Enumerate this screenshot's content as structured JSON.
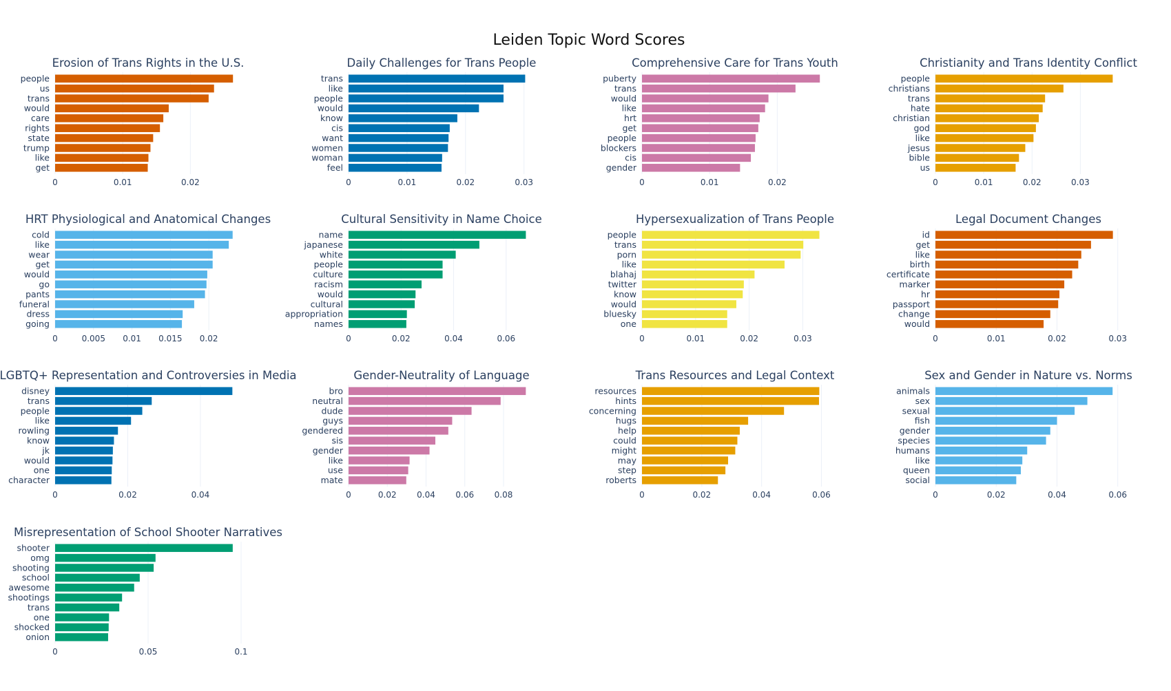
{
  "title": "Leiden Topic Word Scores",
  "chart_data": [
    {
      "type": "bar",
      "orientation": "horizontal",
      "title": "Erosion of Trans Rights in the U.S.",
      "color": "#D55E00",
      "categories": [
        "people",
        "us",
        "trans",
        "would",
        "care",
        "rights",
        "state",
        "trump",
        "like",
        "get"
      ],
      "values": [
        0.0263,
        0.0235,
        0.0227,
        0.0168,
        0.016,
        0.0155,
        0.0145,
        0.0141,
        0.0138,
        0.0137
      ],
      "xlim": [
        0,
        0.0275
      ],
      "xticks": [
        0,
        0.01,
        0.02
      ],
      "xticklabels": [
        "0",
        "0.01",
        "0.02"
      ]
    },
    {
      "type": "bar",
      "orientation": "horizontal",
      "title": "Daily Challenges for Trans People",
      "color": "#0072B2",
      "categories": [
        "trans",
        "like",
        "people",
        "would",
        "know",
        "cis",
        "want",
        "women",
        "woman",
        "feel"
      ],
      "values": [
        0.0302,
        0.0265,
        0.0265,
        0.0223,
        0.0186,
        0.0173,
        0.0171,
        0.017,
        0.016,
        0.0159
      ],
      "xlim": [
        0,
        0.0318
      ],
      "xticks": [
        0,
        0.01,
        0.02,
        0.03
      ],
      "xticklabels": [
        "0",
        "0.01",
        "0.02",
        "0.03"
      ]
    },
    {
      "type": "bar",
      "orientation": "horizontal",
      "title": "Comprehensive Care for Trans Youth",
      "color": "#CC79A7",
      "categories": [
        "puberty",
        "trans",
        "would",
        "like",
        "hrt",
        "get",
        "people",
        "blockers",
        "cis",
        "gender"
      ],
      "values": [
        0.0263,
        0.0227,
        0.0187,
        0.0182,
        0.0174,
        0.0172,
        0.0168,
        0.0167,
        0.0161,
        0.0145
      ],
      "xlim": [
        0,
        0.0275
      ],
      "xticks": [
        0,
        0.01,
        0.02
      ],
      "xticklabels": [
        "0",
        "0.01",
        "0.02"
      ]
    },
    {
      "type": "bar",
      "orientation": "horizontal",
      "title": "Christianity and Trans Identity Conflict",
      "color": "#E69F00",
      "categories": [
        "people",
        "christians",
        "trans",
        "hate",
        "christian",
        "god",
        "like",
        "jesus",
        "bible",
        "us"
      ],
      "values": [
        0.0367,
        0.0265,
        0.0227,
        0.0222,
        0.0214,
        0.0208,
        0.0203,
        0.0186,
        0.0173,
        0.0166
      ],
      "xlim": [
        0,
        0.0385
      ],
      "xticks": [
        0,
        0.01,
        0.02,
        0.03
      ],
      "xticklabels": [
        "0",
        "0.01",
        "0.02",
        "0.03"
      ]
    },
    {
      "type": "bar",
      "orientation": "horizontal",
      "title": "HRT Physiological and Anatomical Changes",
      "color": "#56B4E9",
      "categories": [
        "cold",
        "like",
        "wear",
        "get",
        "would",
        "go",
        "pants",
        "funeral",
        "dress",
        "going"
      ],
      "values": [
        0.0231,
        0.0226,
        0.0205,
        0.0205,
        0.0198,
        0.0197,
        0.0195,
        0.0181,
        0.0166,
        0.0165
      ],
      "xlim": [
        0,
        0.0242
      ],
      "xticks": [
        0,
        0.005,
        0.01,
        0.015,
        0.02
      ],
      "xticklabels": [
        "0",
        "0.005",
        "0.01",
        "0.015",
        "0.02"
      ]
    },
    {
      "type": "bar",
      "orientation": "horizontal",
      "title": "Cultural Sensitivity in Name Choice",
      "color": "#009E73",
      "categories": [
        "name",
        "japanese",
        "white",
        "people",
        "culture",
        "racism",
        "would",
        "cultural",
        "appropriation",
        "names"
      ],
      "values": [
        0.0675,
        0.0498,
        0.0408,
        0.0358,
        0.0358,
        0.0278,
        0.0255,
        0.0252,
        0.0222,
        0.022
      ],
      "xlim": [
        0,
        0.0708
      ],
      "xticks": [
        0,
        0.02,
        0.04,
        0.06
      ],
      "xticklabels": [
        "0",
        "0.02",
        "0.04",
        "0.06"
      ]
    },
    {
      "type": "bar",
      "orientation": "horizontal",
      "title": "Hypersexualization of Trans People",
      "color": "#F0E442",
      "categories": [
        "people",
        "trans",
        "porn",
        "like",
        "blahaj",
        "twitter",
        "know",
        "would",
        "bluesky",
        "one"
      ],
      "values": [
        0.0331,
        0.0301,
        0.0296,
        0.0266,
        0.021,
        0.019,
        0.0188,
        0.0176,
        0.0159,
        0.0159
      ],
      "xlim": [
        0,
        0.0347
      ],
      "xticks": [
        0,
        0.01,
        0.02,
        0.03
      ],
      "xticklabels": [
        "0",
        "0.01",
        "0.02",
        "0.03"
      ]
    },
    {
      "type": "bar",
      "orientation": "horizontal",
      "title": "Legal Document Changes",
      "color": "#D55E00",
      "categories": [
        "id",
        "get",
        "like",
        "birth",
        "certificate",
        "marker",
        "hr",
        "passport",
        "change",
        "would"
      ],
      "values": [
        0.0292,
        0.0256,
        0.024,
        0.0235,
        0.0225,
        0.0212,
        0.0204,
        0.0202,
        0.0189,
        0.0178
      ],
      "xlim": [
        0,
        0.0306
      ],
      "xticks": [
        0,
        0.01,
        0.02,
        0.03
      ],
      "xticklabels": [
        "0",
        "0.01",
        "0.02",
        "0.03"
      ]
    },
    {
      "type": "bar",
      "orientation": "horizontal",
      "title": "LGBTQ+ Representation and Controversies in Media",
      "color": "#0072B2",
      "categories": [
        "disney",
        "trans",
        "people",
        "like",
        "rowling",
        "know",
        "jk",
        "would",
        "one",
        "character"
      ],
      "values": [
        0.0488,
        0.0266,
        0.024,
        0.0209,
        0.0173,
        0.0162,
        0.0159,
        0.0158,
        0.0156,
        0.0155
      ],
      "xlim": [
        0,
        0.0512
      ],
      "xticks": [
        0,
        0.02,
        0.04
      ],
      "xticklabels": [
        "0",
        "0.02",
        "0.04"
      ]
    },
    {
      "type": "bar",
      "orientation": "horizontal",
      "title": "Gender-Neutrality of Language",
      "color": "#CC79A7",
      "categories": [
        "bro",
        "neutral",
        "dude",
        "guys",
        "gendered",
        "sis",
        "gender",
        "like",
        "use",
        "mate"
      ],
      "values": [
        0.0915,
        0.0785,
        0.0635,
        0.0535,
        0.0515,
        0.0448,
        0.0418,
        0.0315,
        0.0308,
        0.0298
      ],
      "xlim": [
        0,
        0.096
      ],
      "xticks": [
        0,
        0.02,
        0.04,
        0.06,
        0.08
      ],
      "xticklabels": [
        "0",
        "0.02",
        "0.04",
        "0.06",
        "0.08"
      ]
    },
    {
      "type": "bar",
      "orientation": "horizontal",
      "title": "Trans Resources and Legal Context",
      "color": "#E69F00",
      "categories": [
        "resources",
        "hints",
        "concerning",
        "hugs",
        "help",
        "could",
        "might",
        "may",
        "step",
        "roberts"
      ],
      "values": [
        0.0593,
        0.0592,
        0.0475,
        0.0355,
        0.0327,
        0.0319,
        0.0312,
        0.0288,
        0.0279,
        0.0254
      ],
      "xlim": [
        0,
        0.0622
      ],
      "xticks": [
        0,
        0.02,
        0.04,
        0.06
      ],
      "xticklabels": [
        "0",
        "0.02",
        "0.04",
        "0.06"
      ]
    },
    {
      "type": "bar",
      "orientation": "horizontal",
      "title": "Sex and Gender in Nature vs. Norms",
      "color": "#56B4E9",
      "categories": [
        "animals",
        "sex",
        "sexual",
        "fish",
        "gender",
        "species",
        "humans",
        "like",
        "queen",
        "social"
      ],
      "values": [
        0.0583,
        0.05,
        0.0458,
        0.04,
        0.0378,
        0.0364,
        0.0302,
        0.0286,
        0.0281,
        0.0266
      ],
      "xlim": [
        0,
        0.0612
      ],
      "xticks": [
        0,
        0.02,
        0.04,
        0.06
      ],
      "xticklabels": [
        "0",
        "0.02",
        "0.04",
        "0.06"
      ]
    },
    {
      "type": "bar",
      "orientation": "horizontal",
      "title": "Misrepresentation of School Shooter Narratives",
      "color": "#009E73",
      "categories": [
        "shooter",
        "omg",
        "shooting",
        "school",
        "awesome",
        "shootings",
        "trans",
        "one",
        "shocked",
        "onion"
      ],
      "values": [
        0.0955,
        0.054,
        0.053,
        0.0455,
        0.0425,
        0.036,
        0.0345,
        0.029,
        0.0288,
        0.0285
      ],
      "xlim": [
        0,
        0.1
      ],
      "xticks": [
        0,
        0.05,
        0.1
      ],
      "xticklabels": [
        "0",
        "0.05",
        "0.1"
      ]
    }
  ]
}
